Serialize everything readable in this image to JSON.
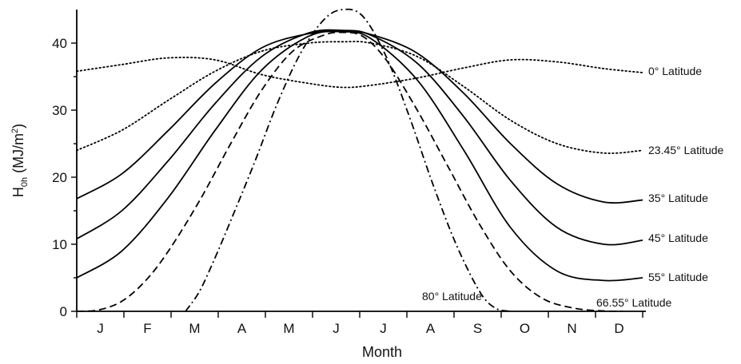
{
  "chart_data": {
    "type": "line",
    "xlabel": "Month",
    "ylabel": {
      "main": "H",
      "sub": "0h",
      "unit": " (MJ/m",
      "sup": "2",
      "close": ")"
    },
    "categories": [
      "J",
      "F",
      "M",
      "A",
      "M",
      "J",
      "J",
      "A",
      "S",
      "O",
      "N",
      "D"
    ],
    "ylim": [
      0,
      45
    ],
    "yticks": [
      0,
      10,
      20,
      30,
      40
    ],
    "grid": false,
    "legend": "inline labels at right end of each curve",
    "series": [
      {
        "name": "0° Latitude",
        "style": "dotted",
        "x": [
          1,
          30,
          60,
          90,
          120,
          150,
          172,
          190,
          220,
          250,
          280,
          310,
          340,
          365
        ],
        "y": [
          35.8,
          36.8,
          37.8,
          37.5,
          35.3,
          34.0,
          33.4,
          33.7,
          34.8,
          36.3,
          37.5,
          37.2,
          36.2,
          35.6
        ]
      },
      {
        "name": "23.45° Latitude",
        "style": "dotted",
        "x": [
          1,
          30,
          60,
          90,
          120,
          150,
          172,
          190,
          220,
          250,
          280,
          310,
          340,
          365
        ],
        "y": [
          24.0,
          27.0,
          31.5,
          35.8,
          38.8,
          40.0,
          40.2,
          40.0,
          38.0,
          33.5,
          28.5,
          25.0,
          23.6,
          24.0
        ]
      },
      {
        "name": "35° Latitude",
        "style": "solid",
        "x": [
          1,
          30,
          60,
          90,
          120,
          150,
          172,
          190,
          220,
          250,
          280,
          310,
          340,
          365
        ],
        "y": [
          16.8,
          20.5,
          27.0,
          34.0,
          39.3,
          41.4,
          41.8,
          41.3,
          38.5,
          32.5,
          25.0,
          19.0,
          16.3,
          16.6
        ]
      },
      {
        "name": "45° Latitude",
        "style": "solid",
        "x": [
          1,
          30,
          60,
          90,
          120,
          150,
          172,
          190,
          220,
          250,
          280,
          310,
          340,
          365
        ],
        "y": [
          10.8,
          15.0,
          22.5,
          31.0,
          38.0,
          41.5,
          41.9,
          41.2,
          37.0,
          29.0,
          19.5,
          12.5,
          10.0,
          10.6
        ]
      },
      {
        "name": "55° Latitude",
        "style": "solid",
        "x": [
          1,
          30,
          60,
          90,
          120,
          150,
          172,
          190,
          220,
          250,
          280,
          310,
          340,
          365
        ],
        "y": [
          5.0,
          9.0,
          17.0,
          27.0,
          36.0,
          41.0,
          41.7,
          40.7,
          34.5,
          24.0,
          12.5,
          6.0,
          4.6,
          5.0
        ]
      },
      {
        "name": "66.55° Latitude",
        "style": "dashed",
        "x": [
          1,
          15,
          30,
          45,
          60,
          80,
          100,
          120,
          140,
          160,
          172,
          185,
          200,
          220,
          240,
          260,
          280,
          300,
          320,
          340,
          352
        ],
        "y": [
          0.0,
          0.2,
          1.5,
          4.5,
          9.0,
          16.5,
          25.0,
          33.0,
          38.8,
          41.2,
          41.6,
          41.0,
          37.5,
          30.0,
          21.5,
          13.0,
          6.0,
          2.0,
          0.5,
          0.05,
          0.0
        ]
      },
      {
        "name": "80° Latitude",
        "style": "dashdot",
        "x": [
          71,
          80,
          90,
          100,
          115,
          130,
          145,
          160,
          172,
          185,
          200,
          215,
          230,
          245,
          260,
          270,
          280
        ],
        "y": [
          0.0,
          3.0,
          8.0,
          13.5,
          22.0,
          31.0,
          38.5,
          43.5,
          45.0,
          44.0,
          38.0,
          29.0,
          19.0,
          10.0,
          3.0,
          0.5,
          0.0
        ]
      }
    ]
  }
}
